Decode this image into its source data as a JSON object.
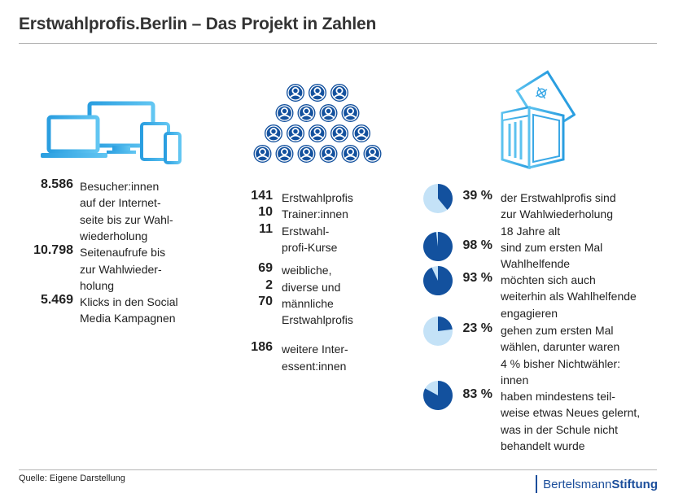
{
  "header": {
    "title": "Erstwahlprofis.Berlin – Das Projekt in Zahlen"
  },
  "colors": {
    "light_blue": "#3fb0ea",
    "dark_blue": "#13519e",
    "pie_light": "#c4e2f7",
    "brand": "#1b4e9b"
  },
  "icons": {
    "left": "devices-icon",
    "middle": "people-group-icon",
    "right": "ballot-box-icon"
  },
  "left_column": [
    {
      "value": "8.586",
      "lines": [
        "Besucher:innen",
        "auf der Internet-",
        "seite bis zur Wahl-",
        "wiederholung"
      ]
    },
    {
      "value": "10.798",
      "lines": [
        "Seitenaufrufe bis",
        "zur Wahlwieder-",
        "holung"
      ]
    },
    {
      "value": "5.469",
      "lines": [
        "Klicks in den Social",
        "Media Kampagnen"
      ]
    }
  ],
  "middle_column": [
    {
      "value": "141",
      "lines": [
        "Erstwahlprofis"
      ]
    },
    {
      "value": "10",
      "lines": [
        "Trainer:innen"
      ]
    },
    {
      "value": "11",
      "lines": [
        "Erstwahl-",
        "profi-Kurse"
      ]
    },
    {
      "value": "69",
      "lines": [
        "weibliche,"
      ]
    },
    {
      "value": "2",
      "lines": [
        "diverse und"
      ]
    },
    {
      "value": "70",
      "lines": [
        "männliche",
        "Erstwahlprofis"
      ]
    },
    {
      "value": "186",
      "lines": [
        "weitere Inter-",
        "essent:innen"
      ]
    }
  ],
  "right_column": [
    {
      "percent": 39,
      "label": "39 %",
      "lines": [
        "der Erstwahlprofis sind",
        "zur Wahlwiederholung",
        "18 Jahre alt"
      ]
    },
    {
      "percent": 98,
      "label": "98 %",
      "lines": [
        "sind zum ersten Mal",
        "Wahlhelfende"
      ]
    },
    {
      "percent": 93,
      "label": "93 %",
      "lines": [
        "möchten sich auch",
        "weiterhin als Wahlhelfende",
        "engagieren"
      ]
    },
    {
      "percent": 23,
      "label": "23 %",
      "lines": [
        "gehen zum ersten Mal",
        "wählen, darunter waren",
        "4 % bisher Nichtwähler:",
        "innen"
      ]
    },
    {
      "percent": 83,
      "label": "83 %",
      "lines": [
        "haben mindestens teil-",
        "weise etwas Neues gelernt,",
        "was in der Schule nicht",
        "behandelt wurde"
      ]
    }
  ],
  "footer": {
    "source": "Quelle: Eigene Darstellung",
    "brand_regular": "Bertelsmann",
    "brand_bold": "Stiftung"
  }
}
